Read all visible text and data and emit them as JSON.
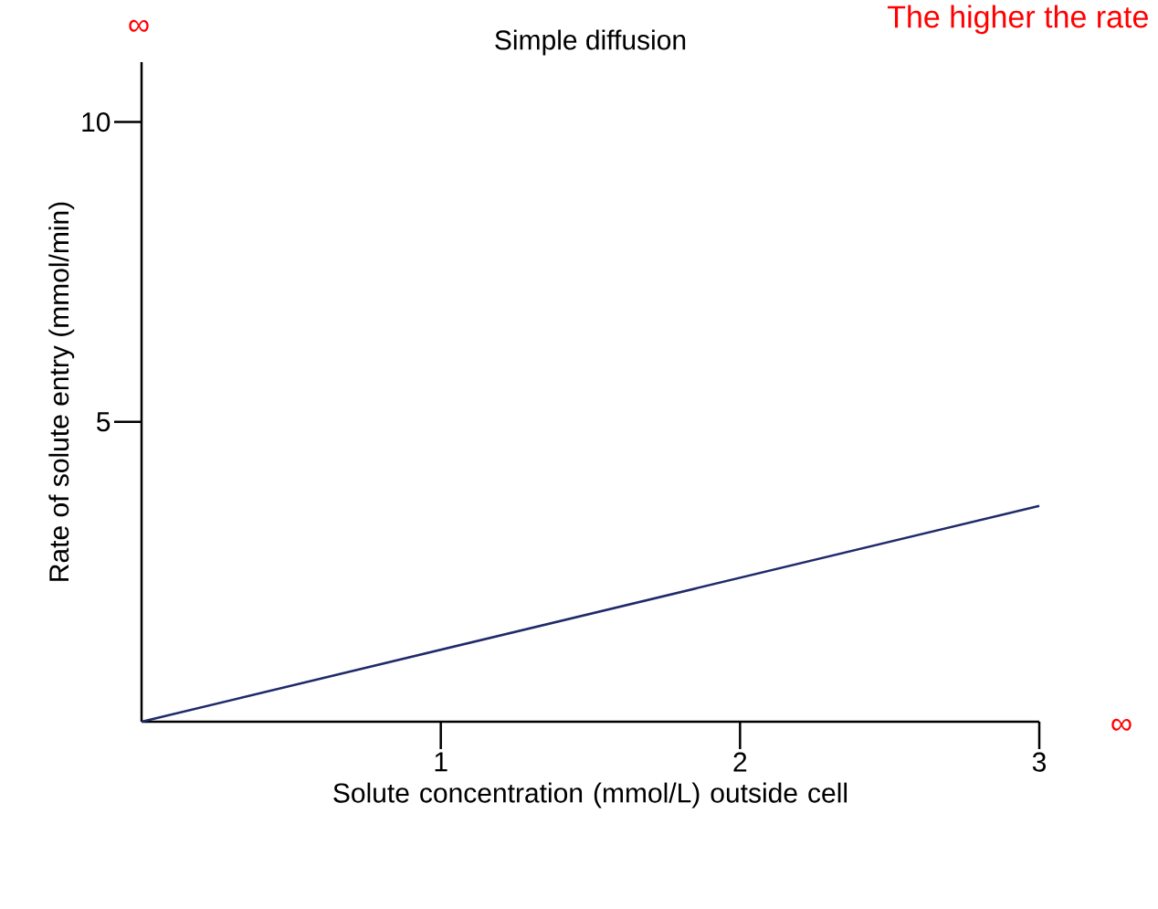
{
  "chart_data": {
    "type": "line",
    "title": "Simple diffusion",
    "xlabel": "Solute concentration (mmol/L) outside cell",
    "ylabel": "Rate of solute entry (mmol/min)",
    "x": [
      0,
      3
    ],
    "values": [
      0,
      3.6
    ],
    "color": "#1f2a6b",
    "xlim": [
      0,
      3
    ],
    "ylim": [
      0,
      11
    ],
    "xticks": [
      1,
      2,
      3
    ],
    "yticks": [
      5,
      10
    ],
    "annotations": [
      "∞",
      "∞",
      "The higher the rate"
    ]
  }
}
